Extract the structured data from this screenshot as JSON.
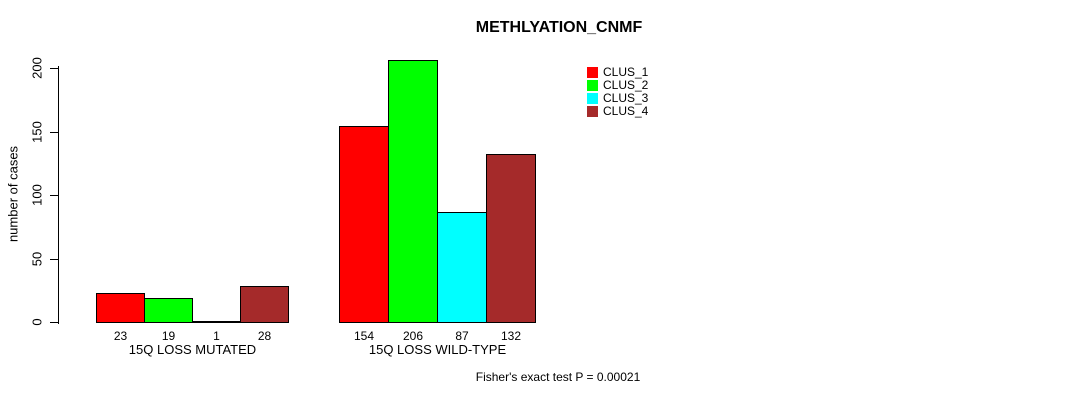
{
  "chart_data": {
    "type": "bar",
    "title": "METHLYATION_CNMF",
    "ylabel": "number of cases",
    "xlabel": "",
    "categories": [
      "15Q LOSS MUTATED",
      "15Q LOSS WILD-TYPE"
    ],
    "series": [
      {
        "name": "CLUS_1",
        "color": "#FF0000",
        "values": [
          23,
          154
        ]
      },
      {
        "name": "CLUS_2",
        "color": "#00FF00",
        "values": [
          19,
          206
        ]
      },
      {
        "name": "CLUS_3",
        "color": "#00FFFF",
        "values": [
          1,
          87
        ]
      },
      {
        "name": "CLUS_4",
        "color": "#A52A2A",
        "values": [
          28,
          132
        ]
      }
    ],
    "bar_value_labels": [
      [
        "23",
        "19",
        "1",
        "28"
      ],
      [
        "154",
        "206",
        "87",
        "132"
      ]
    ],
    "yticks": [
      0,
      50,
      100,
      150,
      200
    ],
    "ylim": [
      0,
      210
    ],
    "grid": false,
    "legend": {
      "position": "inside-top-right-of-center",
      "entries": [
        "CLUS_1",
        "CLUS_2",
        "CLUS_3",
        "CLUS_4"
      ]
    },
    "annotation": "Fisher's exact test P = 0.00021"
  }
}
